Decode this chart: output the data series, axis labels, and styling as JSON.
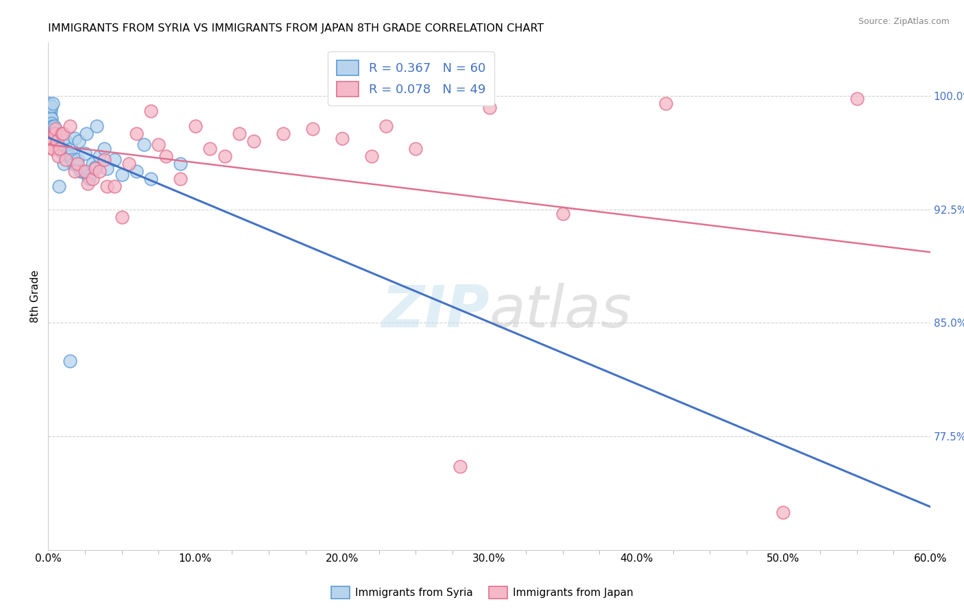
{
  "title": "IMMIGRANTS FROM SYRIA VS IMMIGRANTS FROM JAPAN 8TH GRADE CORRELATION CHART",
  "source": "Source: ZipAtlas.com",
  "xlabel_ticks": [
    "0.0%",
    "10.0%",
    "20.0%",
    "30.0%",
    "40.0%",
    "50.0%",
    "60.0%"
  ],
  "xlabel_vals": [
    0.0,
    10.0,
    20.0,
    30.0,
    40.0,
    50.0,
    60.0
  ],
  "ylabel_label": "8th Grade",
  "ylabel_ticks": [
    77.5,
    85.0,
    92.5,
    100.0
  ],
  "ylabel_tick_labels": [
    "77.5%",
    "85.0%",
    "92.5%",
    "100.0%"
  ],
  "xlim": [
    0.0,
    60.0
  ],
  "ylim": [
    70.0,
    103.5
  ],
  "legend_entries": [
    {
      "label": "Immigrants from Syria",
      "R": 0.367,
      "N": 60,
      "color": "#b8d4ed",
      "line_color": "#4472C4"
    },
    {
      "label": "Immigrants from Japan",
      "R": 0.078,
      "N": 49,
      "color": "#f4b8c8",
      "line_color": "#E07090"
    }
  ],
  "syria_x": [
    0.05,
    0.08,
    0.1,
    0.1,
    0.12,
    0.15,
    0.18,
    0.2,
    0.2,
    0.22,
    0.25,
    0.28,
    0.3,
    0.35,
    0.38,
    0.4,
    0.42,
    0.45,
    0.5,
    0.55,
    0.6,
    0.65,
    0.7,
    0.75,
    0.8,
    0.85,
    0.9,
    1.0,
    1.05,
    1.1,
    1.2,
    1.3,
    1.4,
    1.5,
    1.55,
    1.6,
    1.7,
    1.8,
    1.9,
    2.0,
    2.1,
    2.2,
    2.3,
    2.5,
    2.6,
    2.7,
    2.8,
    3.0,
    3.2,
    3.3,
    3.5,
    3.8,
    4.0,
    4.5,
    5.0,
    6.0,
    6.5,
    7.0,
    9.0,
    1.5
  ],
  "syria_y": [
    97.5,
    98.0,
    98.8,
    99.5,
    99.2,
    99.0,
    98.6,
    98.5,
    99.3,
    98.2,
    98.0,
    97.9,
    99.5,
    97.6,
    97.8,
    98.0,
    97.5,
    97.3,
    97.2,
    97.3,
    96.8,
    97.0,
    96.8,
    94.0,
    97.5,
    96.5,
    96.3,
    96.5,
    95.5,
    96.7,
    97.0,
    96.2,
    96.0,
    96.0,
    96.5,
    95.8,
    95.5,
    97.2,
    95.4,
    95.8,
    97.0,
    95.0,
    95.0,
    96.2,
    97.5,
    94.7,
    94.5,
    95.5,
    95.3,
    98.0,
    96.0,
    96.5,
    95.2,
    95.8,
    94.8,
    95.0,
    96.8,
    94.5,
    95.5,
    82.5
  ],
  "japan_x": [
    0.1,
    0.15,
    0.2,
    0.25,
    0.3,
    0.4,
    0.45,
    0.5,
    0.6,
    0.7,
    0.8,
    0.9,
    1.0,
    1.2,
    1.5,
    1.8,
    2.0,
    2.5,
    2.7,
    3.0,
    3.2,
    3.5,
    3.8,
    4.0,
    4.5,
    5.0,
    5.5,
    6.0,
    7.0,
    7.5,
    8.0,
    9.0,
    10.0,
    11.0,
    12.0,
    13.0,
    14.0,
    16.0,
    18.0,
    20.0,
    22.0,
    23.0,
    25.0,
    28.0,
    30.0,
    35.0,
    42.0,
    50.0,
    55.0
  ],
  "japan_y": [
    97.0,
    96.8,
    97.2,
    96.5,
    96.5,
    97.5,
    97.5,
    97.8,
    97.0,
    96.0,
    96.5,
    97.5,
    97.5,
    95.8,
    98.0,
    95.0,
    95.5,
    95.0,
    94.2,
    94.5,
    95.2,
    95.0,
    95.8,
    94.0,
    94.0,
    92.0,
    95.5,
    97.5,
    99.0,
    96.8,
    96.0,
    94.5,
    98.0,
    96.5,
    96.0,
    97.5,
    97.0,
    97.5,
    97.8,
    97.2,
    96.0,
    98.0,
    96.5,
    75.5,
    99.2,
    92.2,
    99.5,
    72.5,
    99.8
  ]
}
